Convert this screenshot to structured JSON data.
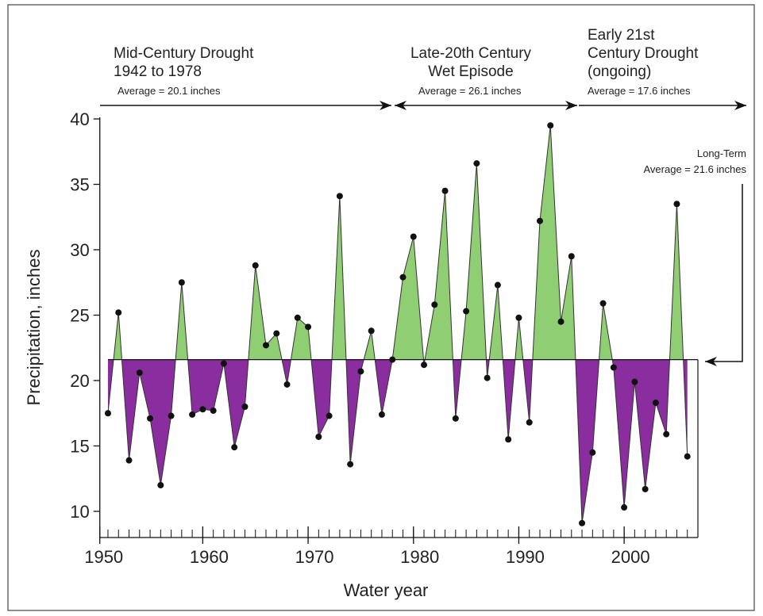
{
  "chart_data": {
    "type": "area-line",
    "x_label": "Water year",
    "y_label": "Precipitation, inches",
    "x": [
      1951,
      1952,
      1953,
      1954,
      1955,
      1956,
      1957,
      1958,
      1959,
      1960,
      1961,
      1962,
      1963,
      1964,
      1965,
      1966,
      1967,
      1968,
      1969,
      1970,
      1971,
      1972,
      1973,
      1974,
      1975,
      1976,
      1977,
      1978,
      1979,
      1980,
      1981,
      1982,
      1983,
      1984,
      1985,
      1986,
      1987,
      1988,
      1989,
      1990,
      1991,
      1992,
      1993,
      1994,
      1995,
      1996,
      1997,
      1998,
      1999,
      2000,
      2001,
      2002,
      2003,
      2004,
      2005,
      2006
    ],
    "values": [
      17.5,
      25.2,
      13.9,
      20.6,
      17.1,
      12.0,
      17.3,
      27.5,
      17.4,
      17.8,
      17.7,
      21.3,
      14.9,
      18.0,
      28.8,
      22.7,
      23.6,
      19.7,
      24.8,
      24.1,
      15.7,
      17.3,
      34.1,
      13.6,
      20.7,
      23.8,
      17.4,
      21.6,
      27.9,
      31.0,
      21.2,
      25.8,
      34.5,
      17.1,
      25.3,
      36.6,
      20.2,
      27.3,
      15.5,
      24.8,
      16.8,
      32.2,
      39.5,
      24.5,
      29.5,
      9.1,
      14.5,
      25.9,
      21.0,
      10.3,
      19.9,
      11.7,
      18.3,
      15.9,
      33.5,
      14.2
    ],
    "long_term_average": 21.6,
    "above_color": "#8fce73",
    "below_color": "#8a2d9e",
    "xlim": [
      1950,
      2007
    ],
    "ylim": [
      8,
      40
    ],
    "xticks": [
      1950,
      1960,
      1970,
      1980,
      1990,
      2000
    ],
    "yticks": [
      10,
      15,
      20,
      25,
      30,
      35,
      40
    ],
    "periods": [
      {
        "lines": [
          "Mid-Century Drought",
          "1942 to 1978"
        ],
        "average": "Average = 20.1 inches"
      },
      {
        "lines": [
          "Late-20th Century",
          "Wet Episode"
        ],
        "average": "Average = 26.1 inches"
      },
      {
        "lines": [
          "Early 21st",
          "Century Drought",
          "(ongoing)"
        ],
        "average": "Average = 17.6 inches"
      }
    ],
    "long_term_label": [
      "Long-Term",
      "Average = 21.6 inches"
    ]
  }
}
